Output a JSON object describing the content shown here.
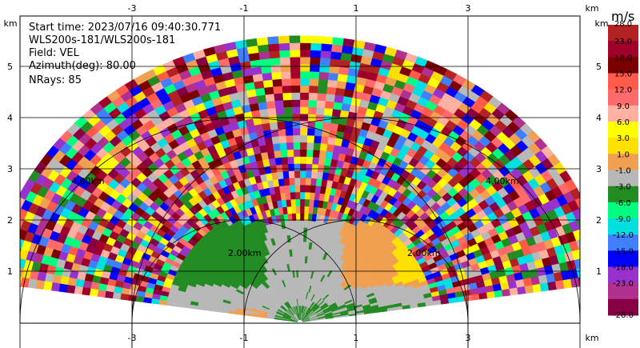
{
  "chart_data": {
    "type": "heatmap",
    "subtype": "radar-rhi-scan",
    "info": {
      "start_time": "Start time: 2023/07/16 09:40:30.771",
      "instrument": "WLS200s-181/WLS200s-181",
      "field": "Field: VEL",
      "azimuth": "Azimuth(deg): 80.00",
      "nrays": "NRays: 85"
    },
    "x_axis": {
      "unit": "km",
      "range": [
        -5,
        5
      ],
      "ticks": [
        "-3",
        "-1",
        "1",
        "3"
      ],
      "tick_values": [
        -3,
        -1,
        1,
        3
      ]
    },
    "y_axis": {
      "unit": "km",
      "range": [
        0,
        5.6
      ],
      "ticks": [
        "1",
        "2",
        "3",
        "4",
        "5"
      ],
      "tick_values": [
        1,
        2,
        3,
        4,
        5
      ]
    },
    "range_rings": {
      "labels": [
        "2.00km",
        "2.00km",
        "4.00km",
        "4.00km"
      ]
    },
    "grid": true,
    "colorbar": {
      "unit": "m/s",
      "labels": [
        "28.0",
        "23.0",
        "18.0",
        "15.0",
        "12.0",
        "9.0",
        "6.0",
        "3.0",
        "1.0",
        "-1.0",
        "-3.0",
        "-6.0",
        "-9.0",
        "-12.0",
        "-15.0",
        "-18.0",
        "-23.0",
        "-28.0"
      ],
      "colors": [
        "#b22222",
        "#a0002a",
        "#7a0000",
        "#ff5a4a",
        "#ff6a6a",
        "#ffb0a0",
        "#ffff00",
        "#ffe000",
        "#f0a050",
        "#b8b8b8",
        "#228b22",
        "#00ff80",
        "#00e0e0",
        "#4080ff",
        "#0000ff",
        "#9932cc",
        "#b03090",
        "#880044"
      ]
    }
  }
}
